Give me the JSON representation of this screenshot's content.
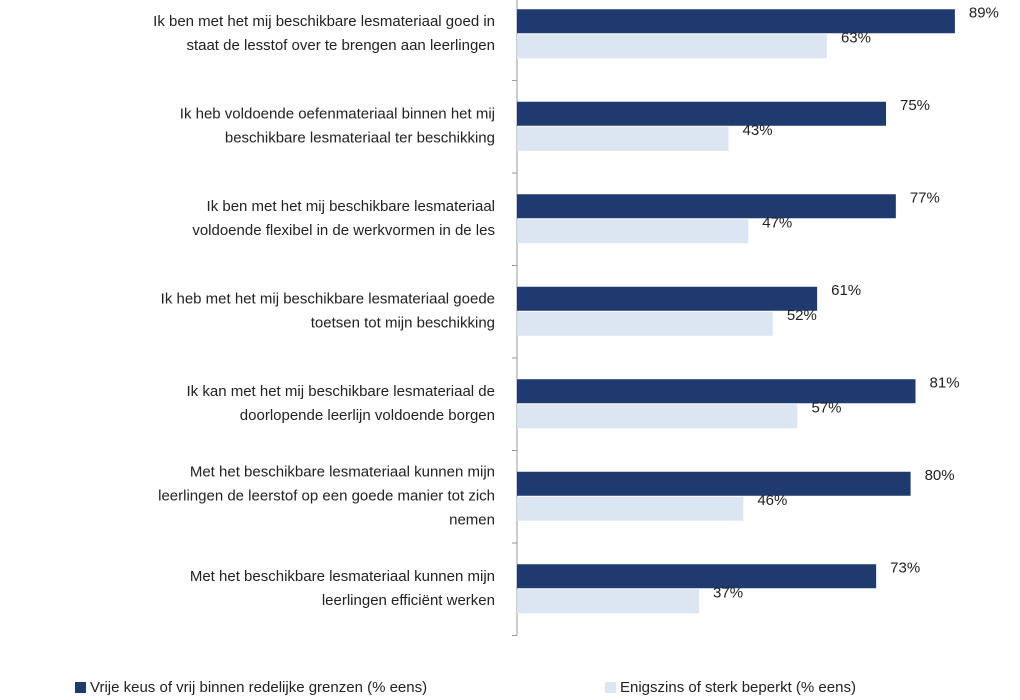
{
  "chart_data": {
    "type": "bar",
    "orientation": "horizontal",
    "categories": [
      [
        "Ik ben met het mij beschikbare lesmateriaal goed in",
        "staat de lesstof over te brengen aan leerlingen"
      ],
      [
        "Ik heb voldoende oefenmateriaal binnen het mij",
        "beschikbare lesmateriaal ter beschikking"
      ],
      [
        "Ik ben met het mij beschikbare lesmateriaal",
        "voldoende flexibel in de werkvormen in de les"
      ],
      [
        "Ik heb met het mij beschikbare lesmateriaal goede",
        "toetsen tot mijn beschikking"
      ],
      [
        "Ik kan met het mij beschikbare lesmateriaal de",
        "doorlopende leerlijn voldoende borgen"
      ],
      [
        "Met het beschikbare lesmateriaal kunnen mijn",
        "leerlingen de leerstof op een goede manier tot zich",
        "nemen"
      ],
      [
        "Met het beschikbare lesmateriaal kunnen mijn",
        "leerlingen efficiënt werken"
      ]
    ],
    "series": [
      {
        "name": "Vrije keus of vrij binnen redelijke grenzen (% eens)",
        "color": "#1f3a6e",
        "values": [
          89,
          75,
          77,
          61,
          81,
          80,
          73
        ],
        "value_labels": [
          "89%",
          "75%",
          "77%",
          "61%",
          "81%",
          "80%",
          "73%"
        ]
      },
      {
        "name": "Enigszins of sterk beperkt (% eens)",
        "color": "#dce6f2",
        "values": [
          63,
          43,
          47,
          52,
          57,
          46,
          37
        ],
        "value_labels": [
          "63%",
          "43%",
          "47%",
          "52%",
          "57%",
          "46%",
          "37%"
        ]
      }
    ],
    "xlim": [
      0,
      100
    ],
    "legend": "bottom"
  }
}
